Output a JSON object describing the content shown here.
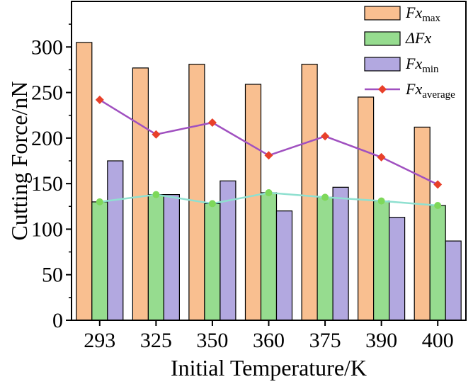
{
  "chart_data": {
    "type": "bar",
    "xlabel": "Initial Temperature/K",
    "ylabel": "Cutting Force/nN",
    "ylim": [
      0,
      350
    ],
    "yticks": [
      0,
      50,
      100,
      150,
      200,
      250,
      300
    ],
    "categories": [
      "293",
      "325",
      "350",
      "360",
      "375",
      "390",
      "400"
    ],
    "series": [
      {
        "name": "Fx_max",
        "legend_main": "Fx",
        "legend_sub": "max",
        "kind": "bar",
        "color": "#F9BF90",
        "values": [
          305,
          277,
          281,
          259,
          281,
          245,
          212
        ]
      },
      {
        "name": "ΔFx",
        "legend_main": "ΔFx",
        "legend_sub": "",
        "kind": "bar",
        "color": "#96DC8F",
        "values": [
          130,
          138,
          128,
          140,
          135,
          131,
          126
        ]
      },
      {
        "name": "Fx_min",
        "legend_main": "Fx",
        "legend_sub": "min",
        "kind": "bar",
        "color": "#B2A8E0",
        "values": [
          175,
          138,
          153,
          120,
          146,
          113,
          87
        ]
      },
      {
        "name": "Fx_average",
        "legend_main": "Fx",
        "legend_sub": "average",
        "kind": "line",
        "color": "#A050C0",
        "marker_color": "#E8402A",
        "values": [
          242,
          204,
          217,
          181,
          202,
          179,
          149
        ]
      }
    ],
    "overlay_line": {
      "over_series": "ΔFx",
      "color": "#8FE0D0",
      "marker_color": "#7ED85A"
    },
    "legend_position": "top-right",
    "grid": false
  }
}
